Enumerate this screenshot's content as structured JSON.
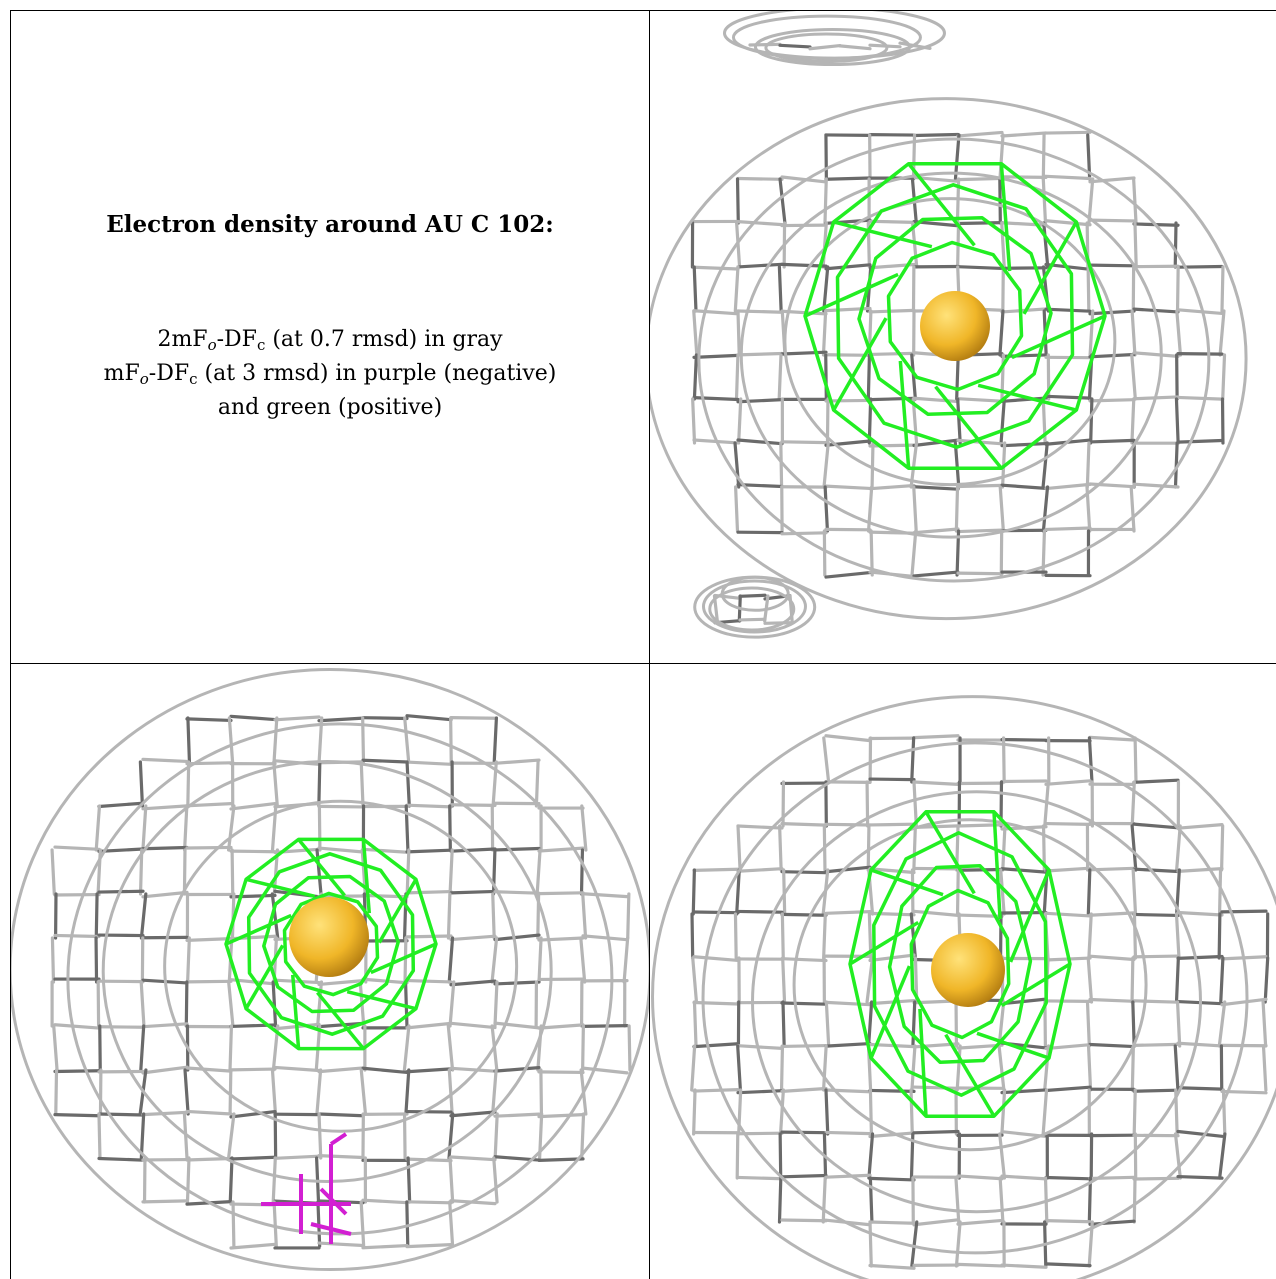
{
  "caption": {
    "title": "Electron density around AU C 102:",
    "lines": [
      {
        "parts": [
          "2mF",
          "o",
          "-DF",
          "c",
          " (at 0.7 rmsd) in gray"
        ]
      },
      {
        "parts": [
          "mF",
          "o",
          "-DF",
          "c",
          " (at 3 rmsd) in purple (negative)"
        ]
      },
      {
        "parts": [
          "and green (positive)",
          "",
          "",
          "",
          ""
        ]
      }
    ]
  },
  "colors": {
    "map_2fofc": "#b5b5b5",
    "map_2fofc_dark": "#6a6a6a",
    "map_fofc_positive": "#22ee22",
    "map_fofc_negative": "#d21fd2",
    "atom": "#f0b628"
  },
  "views": [
    {
      "name": "view-top-right",
      "positive_density": true,
      "negative_density": false
    },
    {
      "name": "view-bottom-left",
      "positive_density": true,
      "negative_density": true
    },
    {
      "name": "view-bottom-right",
      "positive_density": true,
      "negative_density": false
    }
  ]
}
